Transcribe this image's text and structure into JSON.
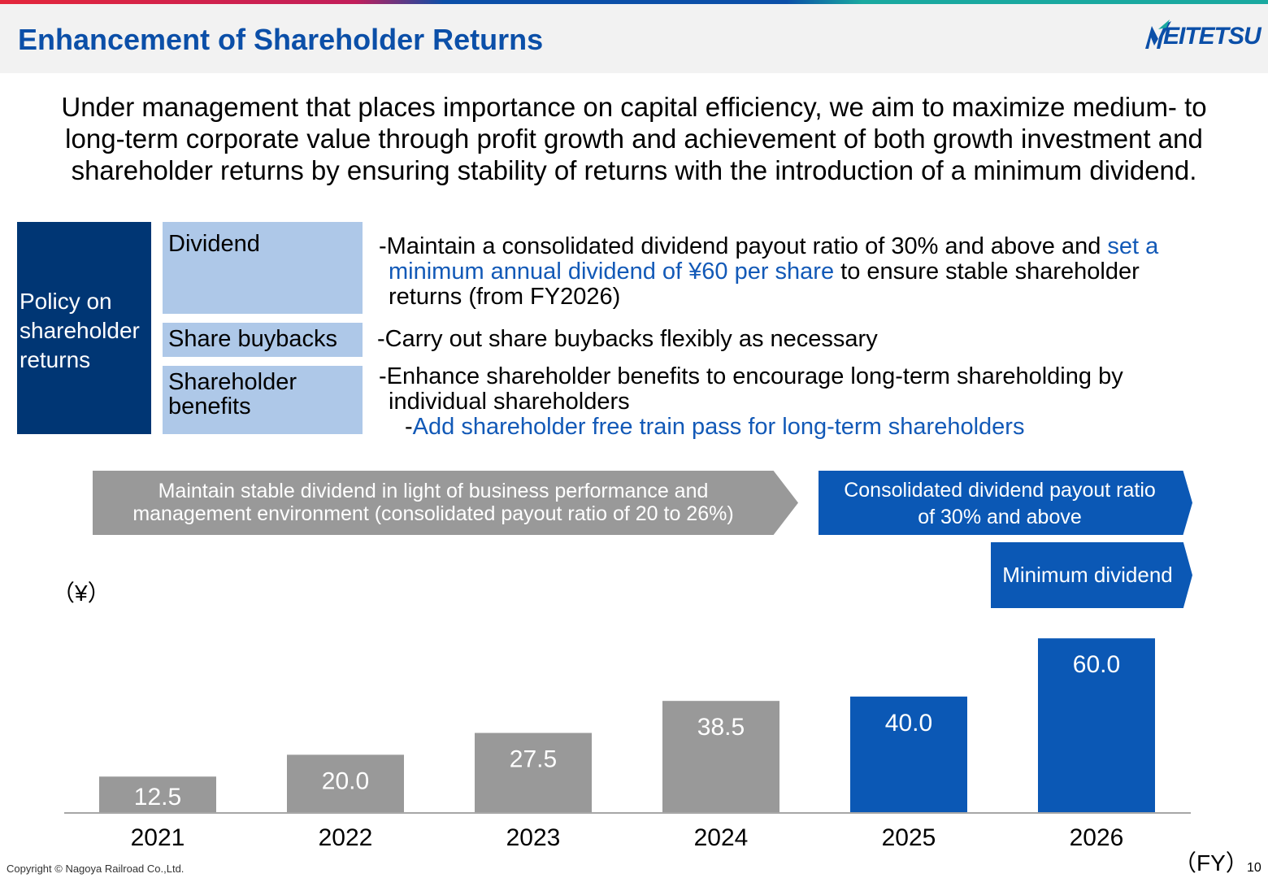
{
  "header": {
    "title": "Enhancement of Shareholder Returns",
    "logo_text": "EITETSU",
    "colors": {
      "title": "#0b4fa8",
      "band": "#f2f2f2"
    }
  },
  "intro": {
    "lines": [
      "Under management that places importance on capital efficiency, we aim to maximize medium- to",
      "long-term corporate value through profit growth and achievement of both growth investment and",
      "shareholder returns by ensuring stability of returns with the introduction of a minimum dividend."
    ]
  },
  "policy": {
    "heading_lines": [
      "Policy on",
      "shareholder",
      "returns"
    ],
    "dividend": {
      "label": "Dividend",
      "line1_a": "-Maintain a consolidated dividend payout ratio of 30% and above and ",
      "line1_b": "set a",
      "line2_a": "minimum annual dividend of ¥60 per share",
      "line2_b": " to ensure stable shareholder",
      "line3": "returns (from FY2026)"
    },
    "buybacks": {
      "label": "Share buybacks",
      "text": "-Carry out share buybacks flexibly as necessary"
    },
    "benefits": {
      "label_lines": [
        "Shareholder",
        "benefits"
      ],
      "line1": "-Enhance shareholder benefits to encourage long-term shareholding by",
      "line2": "individual shareholders",
      "line3_a": "-",
      "line3_b": "Add shareholder free train pass for long-term shareholders"
    }
  },
  "banners": {
    "grey_lines": [
      "Maintain stable dividend in light of business performance and",
      "management environment (consolidated payout ratio of 20 to 26%)"
    ],
    "blue_lines": [
      "Consolidated dividend payout ratio",
      "of 30% and above"
    ],
    "minimum": "Minimum dividend"
  },
  "chart_data": {
    "type": "bar",
    "categories": [
      "2021",
      "2022",
      "2023",
      "2024",
      "2025",
      "2026"
    ],
    "values": [
      12.5,
      20.0,
      27.5,
      38.5,
      40.0,
      60.0
    ],
    "value_labels": [
      "12.5",
      "20.0",
      "27.5",
      "38.5",
      "40.0",
      "60.0"
    ],
    "bar_colors": [
      "#999999",
      "#999999",
      "#999999",
      "#999999",
      "#0b58b5",
      "#0b58b5"
    ],
    "ylabel": "（¥）",
    "xlabel": "（FY）",
    "ylim": [
      0,
      60
    ],
    "grid": false,
    "legend": "none"
  },
  "footer": {
    "copyright": "Copyright © Nagoya Railroad Co.,Ltd.",
    "page": "10"
  }
}
